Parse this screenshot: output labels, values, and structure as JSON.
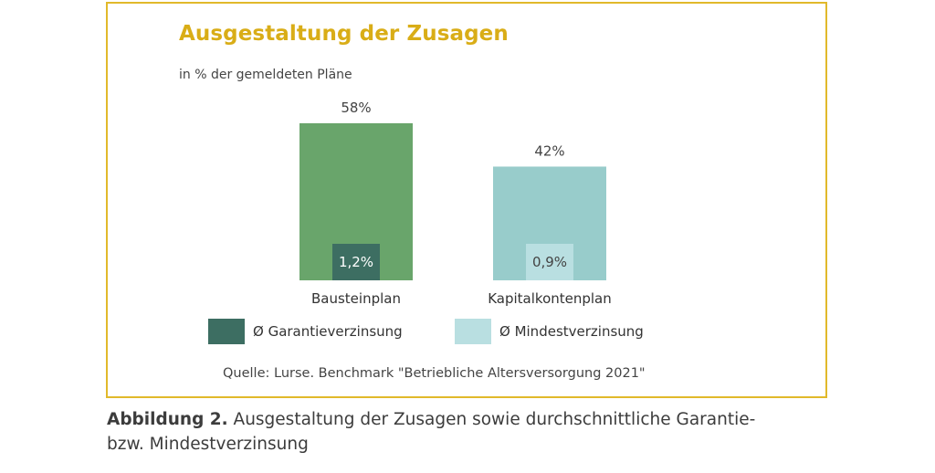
{
  "title": "Ausgestaltung der Zusagen",
  "subtitle": "in % der gemeldeten Pläne",
  "source": "Quelle: Lurse. Benchmark \"Betriebliche Altersversorgung 2021\"",
  "caption": {
    "prefix": "Abbildung 2.",
    "line1": " Ausgestaltung der Zusagen sowie durchschnittliche Garantie-",
    "line2": "bzw. Mindestverzinsung"
  },
  "colors": {
    "frame": "#e1b92b",
    "title": "#d9ad17",
    "bausteinplan_bar": "#69a56b",
    "kapitalkontenplan_bar": "#98cccb",
    "garantie_box": "#3d6e62",
    "mindest_box": "#b9dfe1"
  },
  "chart_data": {
    "type": "bar",
    "title": "Ausgestaltung der Zusagen",
    "ylabel": "in % der gemeldeten Pläne",
    "ylim": [
      0,
      58
    ],
    "grid": false,
    "legend_position": "bottom",
    "categories": [
      "Bausteinplan",
      "Kapitalkontenplan"
    ],
    "series": [
      {
        "values": [
          58,
          42
        ],
        "labels": [
          "58%",
          "42%"
        ]
      }
    ],
    "inner_values": [
      {
        "category": "Bausteinplan",
        "series": "Ø Garantieverzinsung",
        "value": 1.2,
        "label": "1,2%"
      },
      {
        "category": "Kapitalkontenplan",
        "series": "Ø Mindestverzinsung",
        "value": 0.9,
        "label": "0,9%"
      }
    ],
    "legend": [
      {
        "label": "Ø Garantieverzinsung",
        "color": "#3d6e62"
      },
      {
        "label": "Ø Mindestverzinsung",
        "color": "#b9dfe1"
      }
    ]
  }
}
